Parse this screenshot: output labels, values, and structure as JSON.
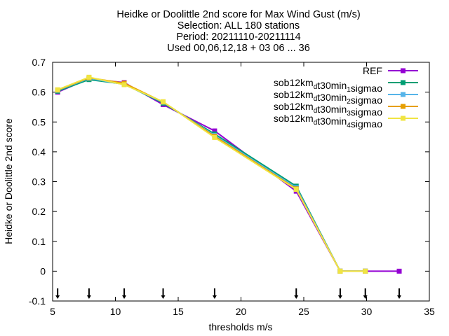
{
  "chart_data": {
    "type": "line",
    "title_lines": [
      "Heidke or Doolittle 2nd score  for Max Wind Gust (m/s)",
      "Selection: ALL    180 stations",
      "Period: 20211110-20211114",
      "Used 00,06,12,18 + 03 06 ... 36"
    ],
    "xlabel": "thresholds m/s",
    "ylabel": "Heidke or Doolittle 2nd score",
    "xlim": [
      5,
      35
    ],
    "ylim": [
      -0.1,
      0.7
    ],
    "xticks": [
      5,
      10,
      15,
      20,
      25,
      30,
      35
    ],
    "yticks": [
      -0.1,
      0,
      0.1,
      0.2,
      0.3,
      0.4,
      0.5,
      0.6,
      0.7
    ],
    "xtick_labels": [
      "5",
      "10",
      "15",
      "20",
      "25",
      "30",
      "35"
    ],
    "ytick_labels": [
      "-0.1",
      "0",
      "0.1",
      "0.2",
      "0.3",
      "0.4",
      "0.5",
      "0.6",
      "0.7"
    ],
    "grid": false,
    "legend_position": "top-right",
    "threshold_markers": [
      5.4,
      7.9,
      10.7,
      13.8,
      17.9,
      24.4,
      27.9,
      29.9,
      32.6
    ],
    "series": [
      {
        "name": "REF",
        "legend_parts": [
          {
            "text": "REF",
            "sub": ""
          }
        ],
        "color": "#9400d3",
        "x": [
          5.4,
          7.9,
          10.7,
          13.8,
          17.9,
          24.4,
          27.9,
          29.9,
          32.6
        ],
        "y": [
          0.6,
          0.645,
          0.632,
          0.558,
          0.47,
          0.268,
          0.0,
          0.0,
          0.0
        ]
      },
      {
        "name": "sob12km_dt30min_1sigmao",
        "legend_parts": [
          {
            "text": "sob12km",
            "sub": "d"
          },
          {
            "text": "t30min",
            "sub": "1"
          },
          {
            "text": "sigmao",
            "sub": ""
          }
        ],
        "color": "#009e73",
        "x": [
          5.4,
          7.9,
          10.7,
          13.8,
          17.9,
          24.4,
          27.9,
          29.9
        ],
        "y": [
          0.603,
          0.642,
          0.627,
          0.563,
          0.46,
          0.285,
          0.0,
          0.0
        ]
      },
      {
        "name": "sob12km_dt30min_2sigmao",
        "legend_parts": [
          {
            "text": "sob12km",
            "sub": "d"
          },
          {
            "text": "t30min",
            "sub": "2"
          },
          {
            "text": "sigmao",
            "sub": ""
          }
        ],
        "color": "#56b4e9",
        "x": [
          5.4,
          7.9,
          10.7,
          13.8,
          17.9,
          24.4,
          27.9,
          29.9
        ],
        "y": [
          0.606,
          0.646,
          0.626,
          0.566,
          0.455,
          0.28,
          0.0,
          0.0
        ]
      },
      {
        "name": "sob12km_dt30min_3sigmao",
        "legend_parts": [
          {
            "text": "sob12km",
            "sub": "d"
          },
          {
            "text": "t30min",
            "sub": "3"
          },
          {
            "text": "sigmao",
            "sub": ""
          }
        ],
        "color": "#e69f00",
        "x": [
          5.4,
          7.9,
          10.7,
          13.8,
          17.9,
          24.4,
          27.9,
          29.9
        ],
        "y": [
          0.607,
          0.648,
          0.63,
          0.567,
          0.452,
          0.276,
          0.0,
          0.0
        ]
      },
      {
        "name": "sob12km_dt30min_4sigmao",
        "legend_parts": [
          {
            "text": "sob12km",
            "sub": "d"
          },
          {
            "text": "t30min",
            "sub": "4"
          },
          {
            "text": "sigmao",
            "sub": ""
          }
        ],
        "color": "#f0e442",
        "x": [
          5.4,
          7.9,
          10.7,
          13.8,
          17.9,
          24.4,
          27.9,
          29.9
        ],
        "y": [
          0.608,
          0.65,
          0.625,
          0.568,
          0.448,
          0.274,
          0.0,
          0.0
        ]
      }
    ]
  }
}
